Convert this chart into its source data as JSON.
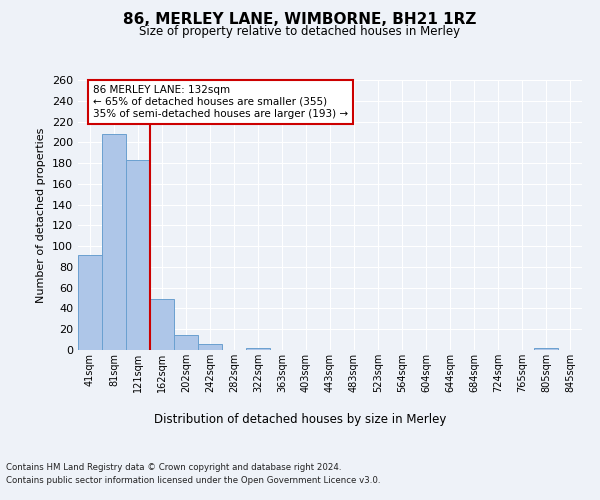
{
  "title1": "86, MERLEY LANE, WIMBORNE, BH21 1RZ",
  "title2": "Size of property relative to detached houses in Merley",
  "xlabel": "Distribution of detached houses by size in Merley",
  "ylabel": "Number of detached properties",
  "categories": [
    "41sqm",
    "81sqm",
    "121sqm",
    "162sqm",
    "202sqm",
    "242sqm",
    "282sqm",
    "322sqm",
    "363sqm",
    "403sqm",
    "443sqm",
    "483sqm",
    "523sqm",
    "564sqm",
    "604sqm",
    "644sqm",
    "684sqm",
    "724sqm",
    "765sqm",
    "805sqm",
    "845sqm"
  ],
  "values": [
    91,
    208,
    183,
    49,
    14,
    6,
    0,
    2,
    0,
    0,
    0,
    0,
    0,
    0,
    0,
    0,
    0,
    0,
    0,
    2,
    0
  ],
  "bar_color": "#aec6e8",
  "bar_edge_color": "#6aa0d0",
  "vline_x_idx": 2,
  "vline_color": "#cc0000",
  "ylim": [
    0,
    260
  ],
  "yticks": [
    0,
    20,
    40,
    60,
    80,
    100,
    120,
    140,
    160,
    180,
    200,
    220,
    240,
    260
  ],
  "annotation_title": "86 MERLEY LANE: 132sqm",
  "annotation_line1": "← 65% of detached houses are smaller (355)",
  "annotation_line2": "35% of semi-detached houses are larger (193) →",
  "annotation_box_color": "#ffffff",
  "annotation_box_edge": "#cc0000",
  "footer1": "Contains HM Land Registry data © Crown copyright and database right 2024.",
  "footer2": "Contains public sector information licensed under the Open Government Licence v3.0.",
  "background_color": "#eef2f8",
  "plot_bg_color": "#eef2f8",
  "grid_color": "#ffffff"
}
